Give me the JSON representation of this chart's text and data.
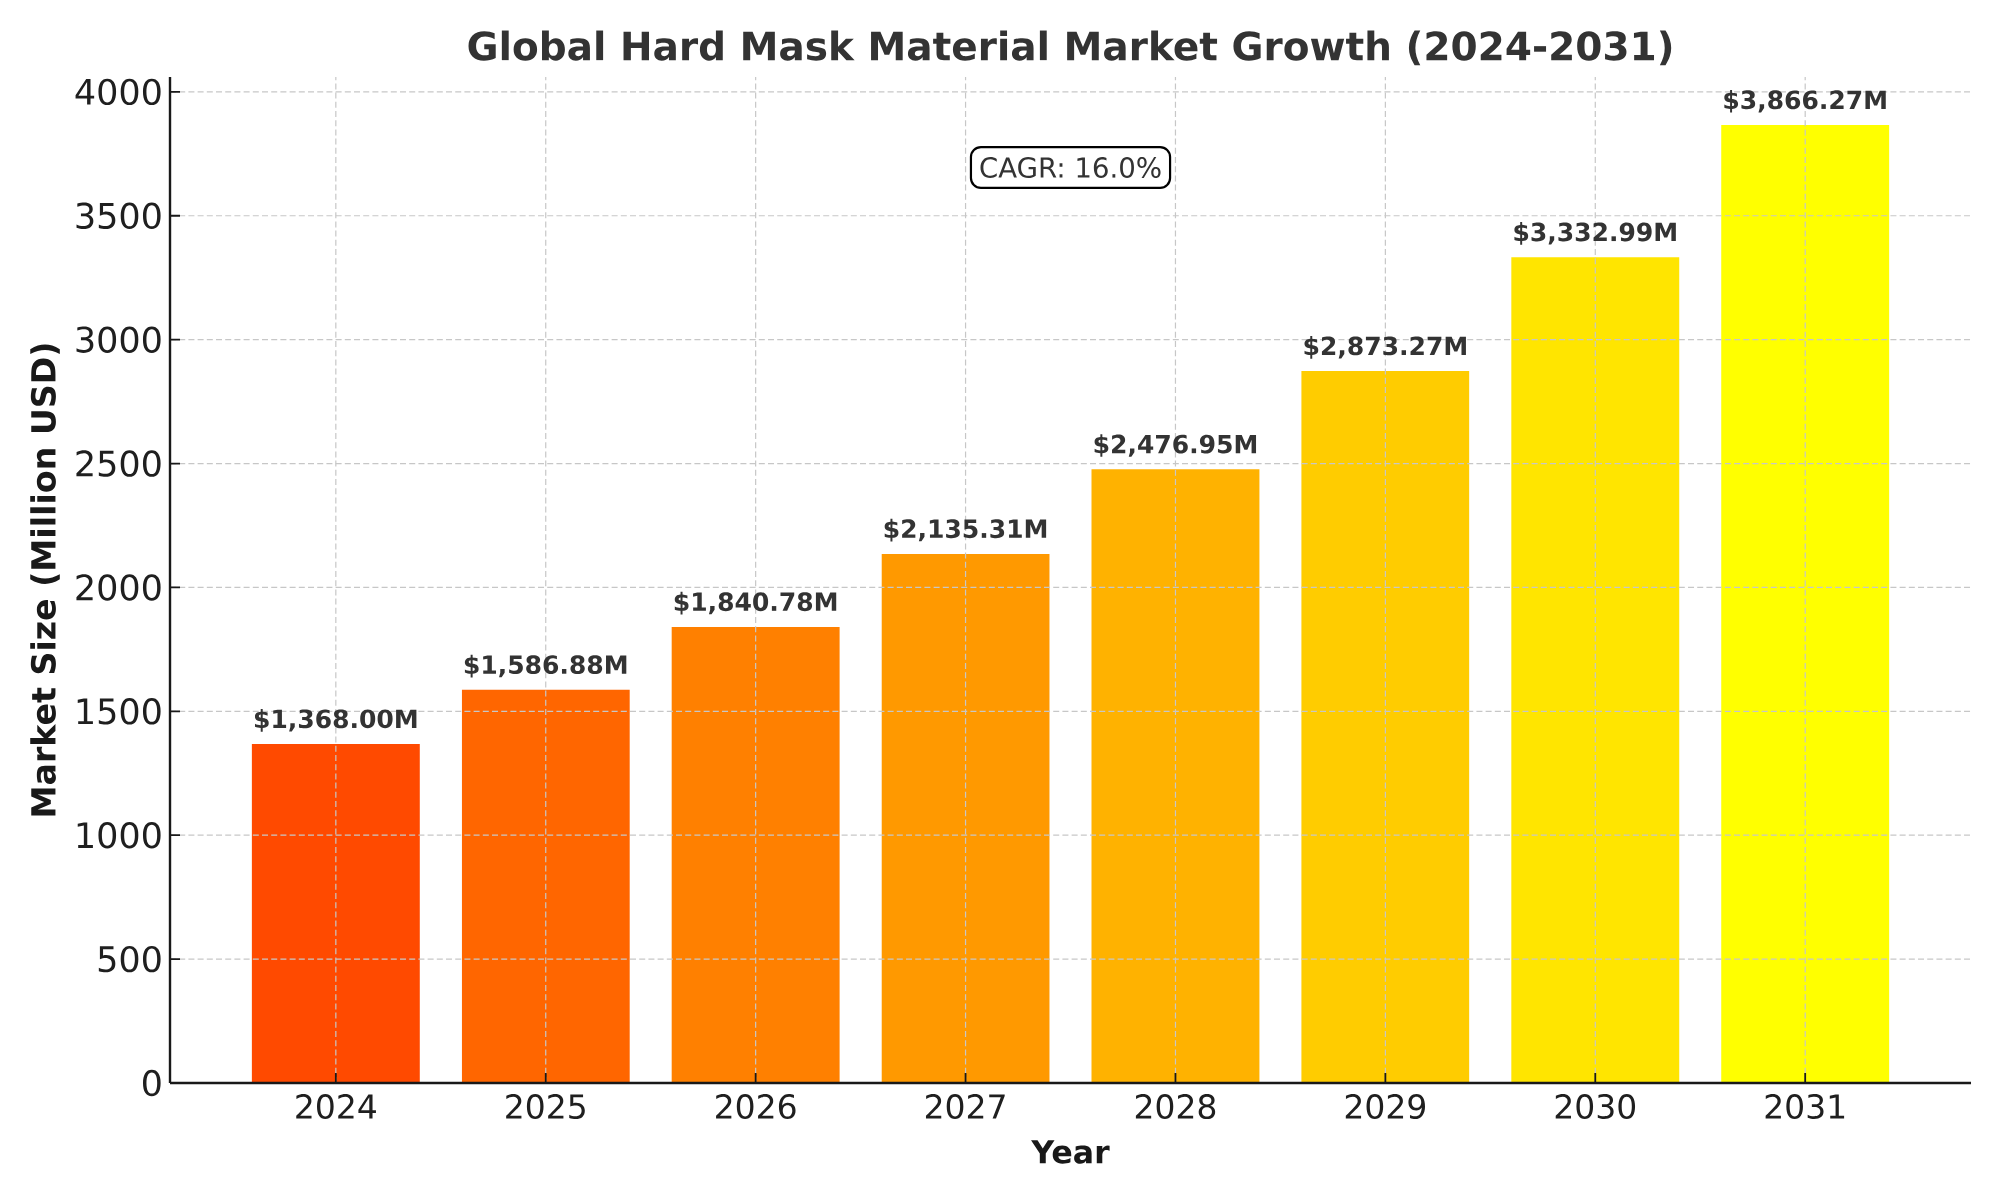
{
  "chart_data": {
    "type": "bar",
    "title": "Global Hard Mask Material Market Growth (2024-2031)",
    "xlabel": "Year",
    "ylabel": "Market Size (Million USD)",
    "categories": [
      "2024",
      "2025",
      "2026",
      "2027",
      "2028",
      "2029",
      "2030",
      "2031"
    ],
    "values": [
      1368.0,
      1586.88,
      1840.78,
      2135.31,
      2476.95,
      2873.27,
      3332.99,
      3866.27
    ],
    "colors": [
      "#ff4a00",
      "#ff6600",
      "#ff8000",
      "#ff9900",
      "#ffb200",
      "#ffcc00",
      "#ffe500",
      "#ffff00"
    ],
    "value_labels": [
      "$1,368.00M",
      "$1,586.88M",
      "$1,840.78M",
      "$2,135.31M",
      "$2,476.95M",
      "$2,873.27M",
      "$3,332.99M",
      "$3,866.27M"
    ],
    "annotations": [
      "CAGR: 16.0%"
    ],
    "ylim": [
      0,
      4060
    ],
    "yticks": [
      0,
      500,
      1000,
      1500,
      2000,
      2500,
      3000,
      3500,
      4000
    ],
    "grid": true
  }
}
